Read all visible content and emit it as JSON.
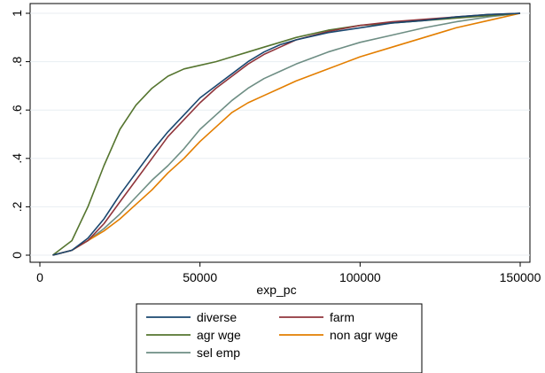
{
  "chart_data": {
    "type": "line",
    "title": "",
    "xlabel": "exp_pc",
    "ylabel": "",
    "xlim": [
      0,
      150000
    ],
    "ylim": [
      0,
      1
    ],
    "x_ticks": [
      0,
      50000,
      100000,
      150000
    ],
    "x_tick_labels": [
      "0",
      "50000",
      "100000",
      "150000"
    ],
    "y_ticks": [
      0,
      0.2,
      0.4,
      0.6,
      0.8,
      1
    ],
    "y_tick_labels": [
      "0",
      ".2",
      ".4",
      ".6",
      ".8",
      "1"
    ],
    "grid": "horizontal",
    "legend_position": "bottom",
    "series": [
      {
        "name": "diverse",
        "color": "#1a476f",
        "x": [
          4000,
          10000,
          15000,
          20000,
          25000,
          30000,
          35000,
          40000,
          45000,
          50000,
          55000,
          60000,
          65000,
          70000,
          75000,
          80000,
          90000,
          100000,
          110000,
          120000,
          130000,
          140000,
          150000
        ],
        "y": [
          0,
          0.02,
          0.07,
          0.15,
          0.25,
          0.34,
          0.43,
          0.51,
          0.58,
          0.65,
          0.7,
          0.75,
          0.8,
          0.84,
          0.87,
          0.89,
          0.92,
          0.94,
          0.96,
          0.97,
          0.985,
          0.995,
          1
        ]
      },
      {
        "name": "farm",
        "color": "#90353b",
        "x": [
          4000,
          10000,
          15000,
          20000,
          25000,
          30000,
          35000,
          40000,
          45000,
          50000,
          55000,
          60000,
          65000,
          70000,
          75000,
          80000,
          90000,
          100000,
          110000,
          120000,
          130000,
          140000,
          150000
        ],
        "y": [
          0,
          0.02,
          0.06,
          0.13,
          0.22,
          0.31,
          0.4,
          0.49,
          0.56,
          0.63,
          0.69,
          0.74,
          0.79,
          0.83,
          0.86,
          0.89,
          0.925,
          0.95,
          0.965,
          0.975,
          0.985,
          0.995,
          1
        ]
      },
      {
        "name": "agr wge",
        "color": "#55752f",
        "x": [
          4000,
          10000,
          15000,
          20000,
          25000,
          30000,
          35000,
          40000,
          45000,
          50000,
          55000,
          60000,
          65000,
          70000,
          75000,
          80000,
          90000,
          100000,
          110000,
          120000,
          130000,
          140000,
          150000
        ],
        "y": [
          0,
          0.06,
          0.2,
          0.37,
          0.52,
          0.62,
          0.69,
          0.74,
          0.77,
          0.785,
          0.8,
          0.82,
          0.84,
          0.86,
          0.88,
          0.9,
          0.93,
          0.95,
          0.96,
          0.97,
          0.98,
          0.99,
          1
        ]
      },
      {
        "name": "non agr wge",
        "color": "#e37e00",
        "x": [
          4000,
          10000,
          15000,
          20000,
          25000,
          30000,
          35000,
          40000,
          45000,
          50000,
          55000,
          60000,
          65000,
          70000,
          75000,
          80000,
          90000,
          100000,
          110000,
          120000,
          130000,
          140000,
          150000
        ],
        "y": [
          0,
          0.02,
          0.06,
          0.1,
          0.15,
          0.21,
          0.27,
          0.34,
          0.4,
          0.47,
          0.53,
          0.59,
          0.63,
          0.66,
          0.69,
          0.72,
          0.77,
          0.82,
          0.86,
          0.9,
          0.94,
          0.97,
          1
        ]
      },
      {
        "name": "sel emp",
        "color": "#6e8e84",
        "x": [
          4000,
          10000,
          15000,
          20000,
          25000,
          30000,
          35000,
          40000,
          45000,
          50000,
          55000,
          60000,
          65000,
          70000,
          75000,
          80000,
          90000,
          100000,
          110000,
          120000,
          130000,
          140000,
          150000
        ],
        "y": [
          0,
          0.02,
          0.06,
          0.11,
          0.17,
          0.24,
          0.31,
          0.37,
          0.44,
          0.52,
          0.58,
          0.64,
          0.69,
          0.73,
          0.76,
          0.79,
          0.84,
          0.88,
          0.91,
          0.94,
          0.965,
          0.985,
          1
        ]
      }
    ]
  }
}
